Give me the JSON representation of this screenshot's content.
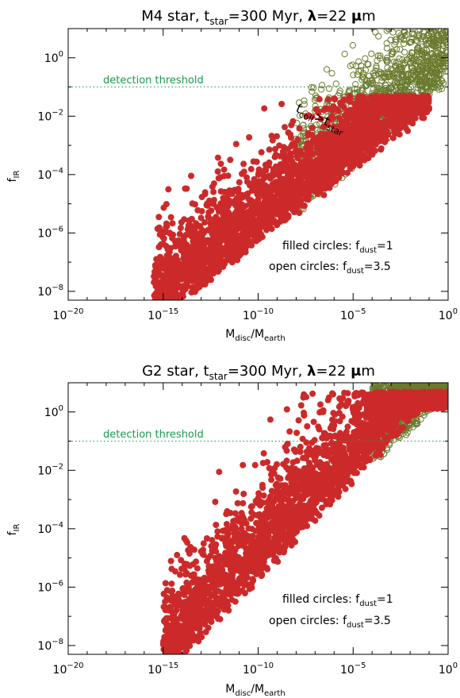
{
  "colors": {
    "filled": "#cc2a2a",
    "open": "#6b7a2e",
    "threshold": "#1a9950",
    "axes": "#000000"
  },
  "chart_data": [
    {
      "type": "scatter",
      "title": {
        "main": "M4 star, t",
        "sub": "star",
        "rest": "=300 Myr, ",
        "lambda": "λ",
        "rest2": "=22 ",
        "mu": "μ",
        "unit": "m"
      },
      "xlabel": {
        "a": "M",
        "a_sub": "disc",
        "b": "/M",
        "b_sub": "earth"
      },
      "ylabel": {
        "a": "f",
        "a_sub": "IR"
      },
      "xscale": "log",
      "yscale": "log",
      "xlim": [
        1e-20,
        1
      ],
      "ylim": [
        5e-09,
        10
      ],
      "x_ticks": [
        {
          "base": "10",
          "exp": "−20",
          "value": -20
        },
        {
          "base": "10",
          "exp": "−15",
          "value": -15
        },
        {
          "base": "10",
          "exp": "−10",
          "value": -10
        },
        {
          "base": "10",
          "exp": "−5",
          "value": -5
        },
        {
          "base": "10",
          "exp": "0",
          "value": 0
        }
      ],
      "y_ticks": [
        {
          "base": "10",
          "exp": "−8",
          "value": -8
        },
        {
          "base": "10",
          "exp": "−6",
          "value": -6
        },
        {
          "base": "10",
          "exp": "−4",
          "value": -4
        },
        {
          "base": "10",
          "exp": "−2",
          "value": -2
        },
        {
          "base": "10",
          "exp": "0",
          "value": 0
        }
      ],
      "detection_threshold": {
        "value": 0.1,
        "label": "detection threshold"
      },
      "annotation_tcoll": {
        "a": "t",
        "a_sub": "coll",
        "op": ">",
        "b": "t",
        "b_sub": "star"
      },
      "legend": {
        "filled": {
          "text": "filled circles: f",
          "sub": "dust",
          "val": "=1"
        },
        "open": {
          "text": "open circles: f",
          "sub": "dust",
          "val": "=3.5"
        }
      },
      "series": [
        {
          "style": "filled",
          "log_x_range": [
            -15.5,
            -1
          ],
          "log_y_at_min": -9.2,
          "slope": 0.5,
          "spread": 2.2,
          "max_log_y": -1.3
        },
        {
          "style": "open",
          "log_x_range": [
            -8,
            0
          ],
          "log_y_at_min": -5.6,
          "slope": 0.58,
          "spread": 2.6,
          "max_log_y": 1.1
        }
      ]
    },
    {
      "type": "scatter",
      "title": {
        "main": "G2 star, t",
        "sub": "star",
        "rest": "=300 Myr, ",
        "lambda": "λ",
        "rest2": "=22 ",
        "mu": "μ",
        "unit": "m"
      },
      "xlabel": {
        "a": "M",
        "a_sub": "disc",
        "b": "/M",
        "b_sub": "earth"
      },
      "ylabel": {
        "a": "f",
        "a_sub": "IR"
      },
      "xscale": "log",
      "yscale": "log",
      "xlim": [
        1e-20,
        1
      ],
      "ylim": [
        5e-09,
        10
      ],
      "x_ticks": [
        {
          "base": "10",
          "exp": "−20",
          "value": -20
        },
        {
          "base": "10",
          "exp": "−15",
          "value": -15
        },
        {
          "base": "10",
          "exp": "−10",
          "value": -10
        },
        {
          "base": "10",
          "exp": "−5",
          "value": -5
        },
        {
          "base": "10",
          "exp": "0",
          "value": 0
        }
      ],
      "y_ticks": [
        {
          "base": "10",
          "exp": "−8",
          "value": -8
        },
        {
          "base": "10",
          "exp": "−6",
          "value": -6
        },
        {
          "base": "10",
          "exp": "−4",
          "value": -4
        },
        {
          "base": "10",
          "exp": "−2",
          "value": -2
        },
        {
          "base": "10",
          "exp": "0",
          "value": 0
        }
      ],
      "detection_threshold": {
        "value": 0.1,
        "label": "detection threshold"
      },
      "legend": {
        "filled": {
          "text": "filled circles: f",
          "sub": "dust",
          "val": "=1"
        },
        "open": {
          "text": "open circles: f",
          "sub": "dust",
          "val": "=3.5"
        }
      },
      "series": [
        {
          "style": "filled",
          "log_x_range": [
            -15,
            0
          ],
          "log_y_at_min": -9.3,
          "slope": 0.68,
          "spread": 2.6,
          "max_log_y": 0.7
        },
        {
          "style": "open",
          "log_x_range": [
            -4,
            0
          ],
          "log_y_at_min": -1.8,
          "slope": 0.55,
          "spread": 2.5,
          "max_log_y": 1.1
        }
      ]
    }
  ]
}
